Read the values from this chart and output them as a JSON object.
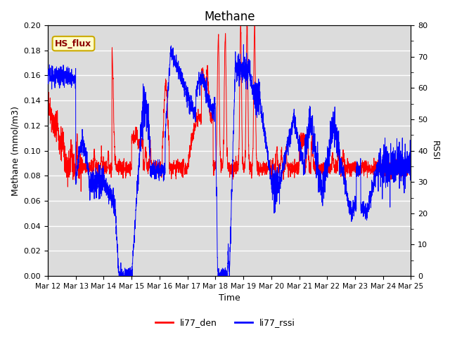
{
  "title": "Methane",
  "ylabel_left": "Methane (mmol/m3)",
  "ylabel_right": "RSSI",
  "xlabel": "Time",
  "ylim_left": [
    0.0,
    0.2
  ],
  "ylim_right": [
    0,
    80
  ],
  "yticks_left": [
    0.0,
    0.02,
    0.04,
    0.06,
    0.08,
    0.1,
    0.12,
    0.14,
    0.16,
    0.18,
    0.2
  ],
  "yticks_right_labeled": [
    0,
    10,
    20,
    30,
    40,
    50,
    60,
    70,
    80
  ],
  "yticks_right_minor": [
    5,
    15,
    25,
    35,
    45,
    55,
    65,
    75
  ],
  "xtick_labels": [
    "Mar 12",
    "Mar 13",
    "Mar 14",
    "Mar 15",
    "Mar 16",
    "Mar 17",
    "Mar 18",
    "Mar 19",
    "Mar 20",
    "Mar 21",
    "Mar 22",
    "Mar 23",
    "Mar 24",
    "Mar 25"
  ],
  "legend_labels": [
    "li77_den",
    "li77_rssi"
  ],
  "legend_colors": [
    "red",
    "blue"
  ],
  "box_label": "HS_flux",
  "box_facecolor": "#FFFFCC",
  "box_edgecolor": "#CCAA00",
  "plot_bg": "#DCDCDC",
  "fig_bg": "#FFFFFF",
  "line_color_red": "red",
  "line_color_blue": "blue",
  "n_points": 3120,
  "days": 13,
  "grid_color": "#FFFFFF",
  "title_fontsize": 12,
  "axis_label_fontsize": 9,
  "tick_fontsize": 8
}
